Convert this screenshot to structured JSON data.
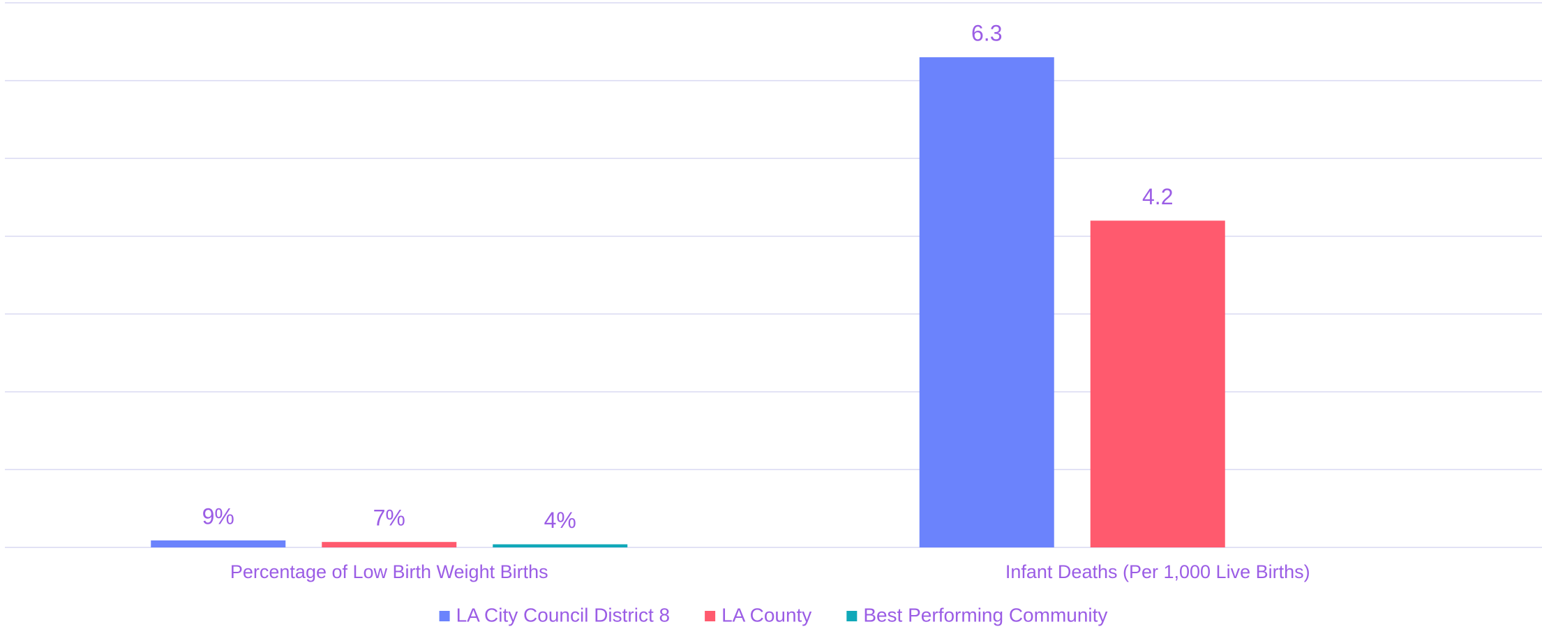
{
  "chart_data": {
    "type": "bar",
    "categories": [
      "Percentage of Low Birth Weight Births",
      "Infant Deaths (Per 1,000 Live Births)"
    ],
    "series": [
      {
        "name": "LA City Council District 8",
        "color": "#6b83fc",
        "values": [
          0.09,
          6.3
        ],
        "value_labels": [
          "9%",
          "6.3"
        ]
      },
      {
        "name": "LA County",
        "color": "#ff5a6e",
        "values": [
          0.07,
          4.2
        ],
        "value_labels": [
          "7%",
          "4.2"
        ]
      },
      {
        "name": "Best Performing Community",
        "color": "#10a8b8",
        "values": [
          0.04,
          null
        ],
        "value_labels": [
          "4%",
          null
        ]
      }
    ],
    "ylim": [
      0,
      7
    ],
    "yticks": [
      0,
      1,
      2,
      3,
      4,
      5,
      6,
      7
    ],
    "grid": true,
    "legend": "bottom"
  }
}
